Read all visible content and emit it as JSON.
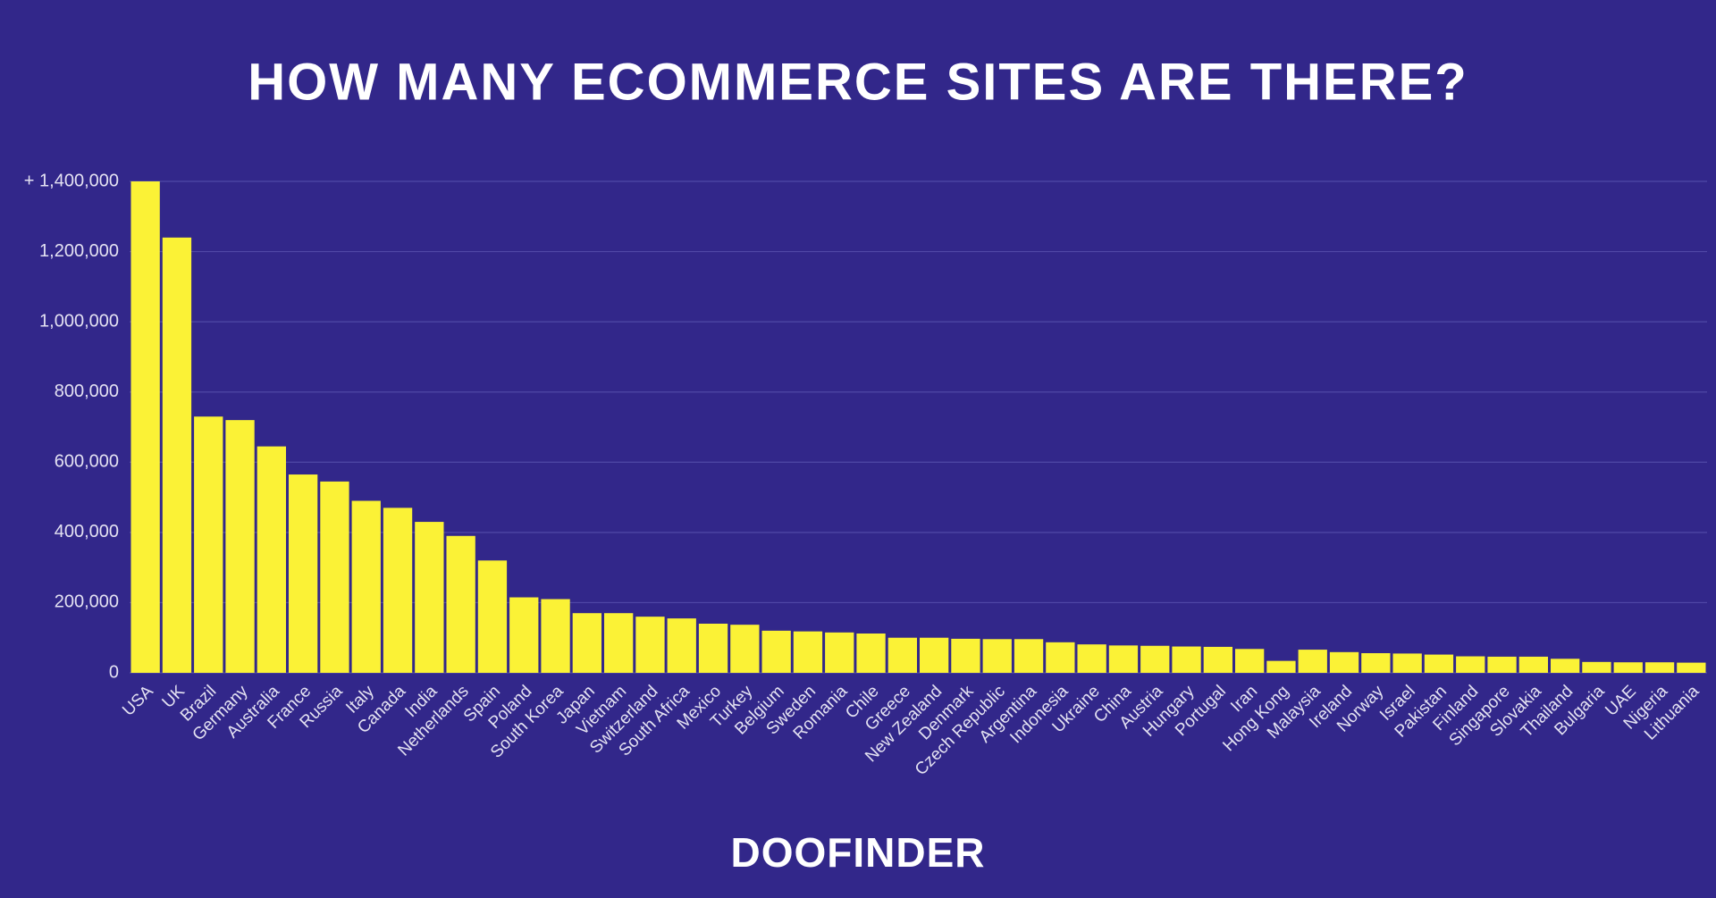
{
  "chart_data": {
    "type": "bar",
    "title": "HOW MANY ECOMMERCE SITES ARE THERE?",
    "logo": "DOOFINDER",
    "categories": [
      "USA",
      "UK",
      "Brazil",
      "Germany",
      "Australia",
      "France",
      "Russia",
      "Italy",
      "Canada",
      "India",
      "Netherlands",
      "Spain",
      "Poland",
      "South Korea",
      "Japan",
      "Vietnam",
      "Switzerland",
      "South Africa",
      "Mexico",
      "Turkey",
      "Belgium",
      "Sweden",
      "Romania",
      "Chile",
      "Greece",
      "New Zealand",
      "Denmark",
      "Czech Republic",
      "Argentina",
      "Indonesia",
      "Ukraine",
      "China",
      "Austria",
      "Hungary",
      "Portugal",
      "Iran",
      "Hong Kong",
      "Malaysia",
      "Ireland",
      "Norway",
      "Israel",
      "Pakistan",
      "Finland",
      "Singapore",
      "Slovakia",
      "Thailand",
      "Bulgaria",
      "UAE",
      "Nigeria",
      "Lithuania"
    ],
    "values": [
      1400000,
      1240000,
      730000,
      720000,
      645000,
      565000,
      545000,
      490000,
      470000,
      430000,
      390000,
      320000,
      215000,
      210000,
      170000,
      170000,
      160000,
      155000,
      140000,
      137000,
      120000,
      118000,
      115000,
      112000,
      100000,
      100000,
      97000,
      96000,
      96000,
      87000,
      81000,
      78000,
      77000,
      75000,
      74000,
      68000,
      34000,
      66000,
      59000,
      56000,
      55000,
      52000,
      47000,
      46000,
      46000,
      40000,
      31000,
      30000,
      30000,
      29000
    ],
    "color": "#fbf236",
    "ylim": [
      0,
      1400000
    ],
    "yticks": [
      0,
      {
        "value": 200000,
        "label": "200,000"
      },
      {
        "value": 400000,
        "label": "400,000"
      },
      {
        "value": 600000,
        "label": "600,000"
      },
      {
        "value": 800000,
        "label": "800,000"
      },
      {
        "value": 1000000,
        "label": "1,000,000"
      },
      {
        "value": 1200000,
        "label": "1,200,000"
      },
      {
        "value": 1400000,
        "label": "+ 1,400,000"
      }
    ],
    "grid": true
  }
}
